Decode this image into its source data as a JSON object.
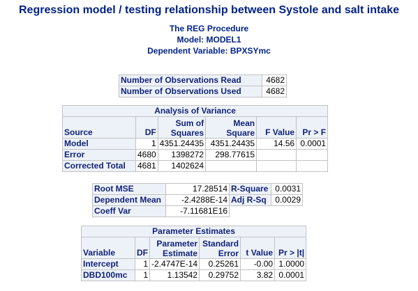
{
  "title": "Regression model / testing relationship between Systole and salt intake",
  "procedure": "The REG Procedure",
  "model": "Model: MODEL1",
  "dependent": "Dependent Variable: BPXSYmc",
  "observations": {
    "rows": [
      {
        "label": "Number of Observations Read",
        "value": "4682"
      },
      {
        "label": "Number of Observations Used",
        "value": "4682"
      }
    ]
  },
  "anova": {
    "caption": "Analysis of Variance",
    "headers": {
      "source": "Source",
      "df": "DF",
      "ss_top": "Sum of",
      "ss_bottom": "Squares",
      "ms_top": "Mean",
      "ms_bottom": "Square",
      "f": "F Value",
      "p": "Pr > F"
    },
    "rows": [
      {
        "source": "Model",
        "df": "1",
        "ss": "4351.24435",
        "ms": "4351.24435",
        "f": "14.56",
        "p": "0.0001"
      },
      {
        "source": "Error",
        "df": "4680",
        "ss": "1398272",
        "ms": "298.77615",
        "f": "",
        "p": ""
      },
      {
        "source": "Corrected Total",
        "df": "4681",
        "ss": "1402624",
        "ms": "",
        "f": "",
        "p": ""
      }
    ]
  },
  "fit": {
    "rows": [
      {
        "label": "Root MSE",
        "value": "17.28514",
        "label2": "R-Square",
        "value2": "0.0031"
      },
      {
        "label": "Dependent Mean",
        "value": "-2.4288E-14",
        "label2": "Adj R-Sq",
        "value2": "0.0029"
      },
      {
        "label": "Coeff Var",
        "value": "-7.11681E16",
        "label2": "",
        "value2": ""
      }
    ]
  },
  "params": {
    "caption": "Parameter Estimates",
    "headers": {
      "variable": "Variable",
      "df": "DF",
      "est_top": "Parameter",
      "est_bottom": "Estimate",
      "se_top": "Standard",
      "se_bottom": "Error",
      "t": "t Value",
      "p": "Pr > |t|"
    },
    "rows": [
      {
        "variable": "Intercept",
        "df": "1",
        "estimate": "-2.4747E-14",
        "se": "0.25261",
        "t": "-0.00",
        "p": "1.0000"
      },
      {
        "variable": "DBD100mc",
        "df": "1",
        "estimate": "1.13542",
        "se": "0.29752",
        "t": "3.82",
        "p": "0.0001"
      }
    ]
  }
}
